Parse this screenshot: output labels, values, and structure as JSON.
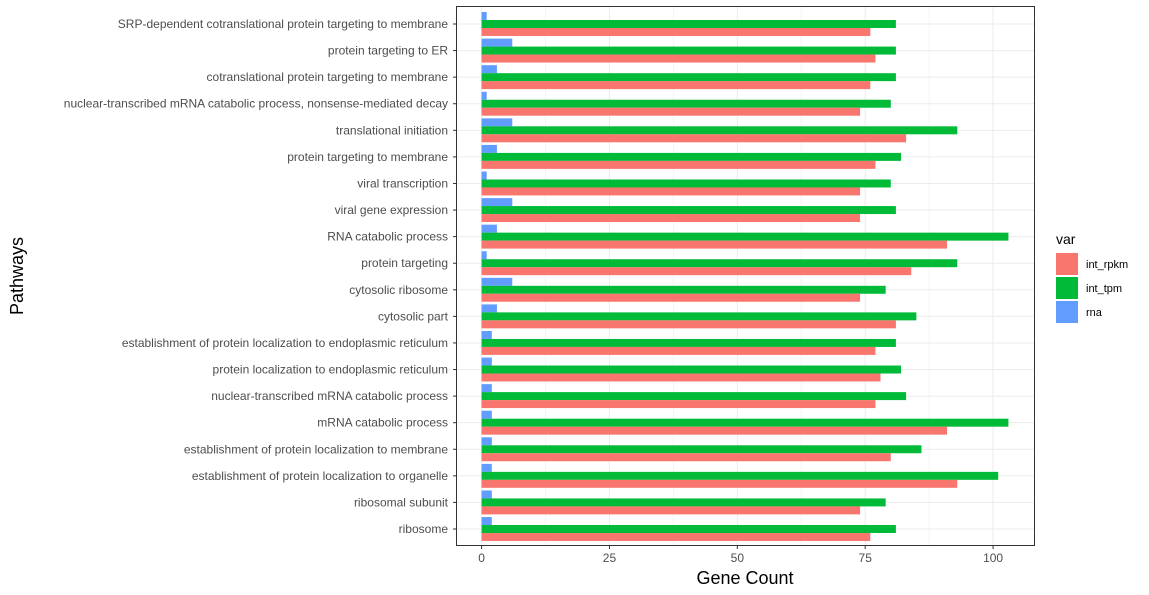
{
  "chart_data": {
    "type": "bar",
    "orientation": "horizontal",
    "xlabel": "Gene Count",
    "ylabel": "Pathways",
    "xlim": [
      -5,
      108
    ],
    "x_ticks": [
      0,
      25,
      50,
      75,
      100
    ],
    "grid": true,
    "legend": {
      "title": "var",
      "position": "right"
    },
    "categories": [
      "SRP-dependent cotranslational protein targeting to membrane",
      "protein targeting to ER",
      "cotranslational protein targeting to membrane",
      "nuclear-transcribed mRNA catabolic process, nonsense-mediated decay",
      "translational initiation",
      "protein targeting to membrane",
      "viral transcription",
      "viral gene expression",
      "RNA catabolic process",
      "protein targeting",
      "cytosolic ribosome",
      "cytosolic part",
      "establishment of protein localization to endoplasmic reticulum",
      "protein localization to endoplasmic reticulum",
      "nuclear-transcribed mRNA catabolic process",
      "mRNA catabolic process",
      "establishment of protein localization to membrane",
      "establishment of protein localization to organelle",
      "ribosomal subunit",
      "ribosome"
    ],
    "series": [
      {
        "name": "int_rpkm",
        "color": "#F8766D",
        "values": [
          76,
          77,
          76,
          74,
          83,
          77,
          74,
          74,
          91,
          84,
          74,
          81,
          77,
          78,
          77,
          91,
          80,
          93,
          74,
          76
        ]
      },
      {
        "name": "int_tpm",
        "color": "#00BA38",
        "values": [
          81,
          81,
          81,
          80,
          93,
          82,
          80,
          81,
          103,
          93,
          79,
          85,
          81,
          82,
          83,
          103,
          86,
          101,
          79,
          81
        ]
      },
      {
        "name": "rna",
        "color": "#619CFF",
        "values": [
          1,
          6,
          3,
          1,
          6,
          3,
          1,
          6,
          3,
          1,
          6,
          3,
          2,
          2,
          2,
          2,
          2,
          2,
          2,
          2
        ]
      }
    ]
  }
}
